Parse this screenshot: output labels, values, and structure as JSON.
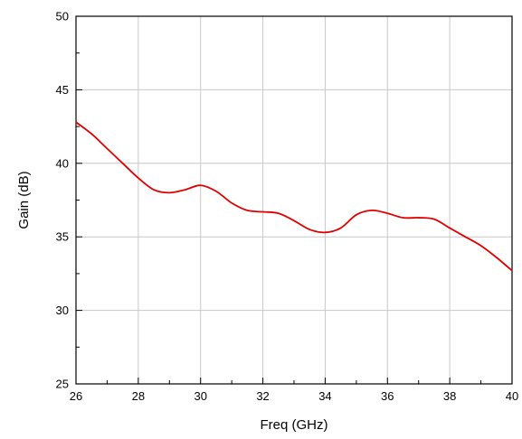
{
  "chart_data": {
    "type": "line",
    "xlabel": "Freq (GHz)",
    "ylabel": "Gain (dB)",
    "xlim": [
      26,
      40
    ],
    "ylim": [
      25,
      50
    ],
    "xticks": [
      "26",
      "28",
      "30",
      "32",
      "34",
      "36",
      "38",
      "40"
    ],
    "yticks": [
      "25",
      "30",
      "35",
      "40",
      "45",
      "50"
    ],
    "grid": true,
    "series": [
      {
        "color": "#e00000",
        "x": [
          26.0,
          26.5,
          27.0,
          27.5,
          28.0,
          28.5,
          29.0,
          29.5,
          30.0,
          30.5,
          31.0,
          31.5,
          32.0,
          32.5,
          33.0,
          33.5,
          34.0,
          34.5,
          35.0,
          35.5,
          36.0,
          36.5,
          37.0,
          37.5,
          38.0,
          38.5,
          39.0,
          39.5,
          40.0
        ],
        "values": [
          42.8,
          42.0,
          41.0,
          40.0,
          39.0,
          38.2,
          38.0,
          38.2,
          38.5,
          38.1,
          37.3,
          36.8,
          36.7,
          36.6,
          36.1,
          35.5,
          35.3,
          35.6,
          36.5,
          36.8,
          36.6,
          36.3,
          36.3,
          36.2,
          35.6,
          35.0,
          34.4,
          33.6,
          32.7
        ]
      }
    ]
  }
}
